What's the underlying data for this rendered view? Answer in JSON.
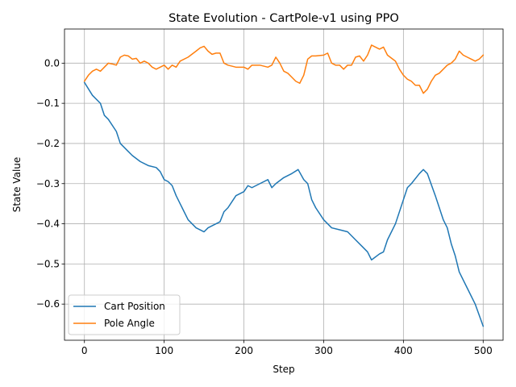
{
  "chart_data": {
    "type": "line",
    "title": "State Evolution - CartPole-v1 using PPO",
    "xlabel": "Step",
    "ylabel": "State Value",
    "xlim": [
      -25,
      525
    ],
    "ylim": [
      -0.69,
      0.085
    ],
    "xticks": [
      0,
      100,
      200,
      300,
      400,
      500
    ],
    "yticks": [
      -0.6,
      -0.5,
      -0.4,
      -0.3,
      -0.2,
      -0.1,
      0.0
    ],
    "xtick_labels": [
      "0",
      "100",
      "200",
      "300",
      "400",
      "500"
    ],
    "ytick_labels": [
      "−0.6",
      "−0.5",
      "−0.4",
      "−0.3",
      "−0.2",
      "−0.1",
      "0.0"
    ],
    "grid": true,
    "legend_position": "lower-left",
    "series": [
      {
        "name": "Cart Position",
        "color": "#1f77b4",
        "x": [
          0,
          10,
          20,
          25,
          30,
          40,
          45,
          50,
          55,
          60,
          70,
          80,
          90,
          95,
          100,
          105,
          110,
          115,
          120,
          125,
          130,
          140,
          150,
          155,
          160,
          170,
          175,
          180,
          190,
          200,
          205,
          210,
          220,
          230,
          235,
          240,
          250,
          255,
          260,
          268,
          275,
          280,
          285,
          290,
          300,
          310,
          320,
          330,
          340,
          350,
          355,
          360,
          370,
          375,
          380,
          390,
          400,
          405,
          410,
          420,
          425,
          430,
          440,
          450,
          455,
          460,
          465,
          470,
          480,
          490,
          500
        ],
        "y": [
          -0.048,
          -0.08,
          -0.1,
          -0.13,
          -0.14,
          -0.17,
          -0.2,
          -0.21,
          -0.22,
          -0.23,
          -0.245,
          -0.255,
          -0.26,
          -0.27,
          -0.29,
          -0.295,
          -0.305,
          -0.33,
          -0.35,
          -0.37,
          -0.39,
          -0.41,
          -0.42,
          -0.41,
          -0.405,
          -0.395,
          -0.37,
          -0.36,
          -0.33,
          -0.32,
          -0.305,
          -0.31,
          -0.3,
          -0.29,
          -0.31,
          -0.3,
          -0.285,
          -0.28,
          -0.275,
          -0.265,
          -0.29,
          -0.3,
          -0.34,
          -0.36,
          -0.39,
          -0.41,
          -0.415,
          -0.42,
          -0.44,
          -0.46,
          -0.47,
          -0.49,
          -0.475,
          -0.47,
          -0.44,
          -0.4,
          -0.34,
          -0.31,
          -0.3,
          -0.275,
          -0.265,
          -0.275,
          -0.33,
          -0.39,
          -0.41,
          -0.45,
          -0.48,
          -0.52,
          -0.56,
          -0.6,
          -0.655
        ]
      },
      {
        "name": "Pole Angle",
        "color": "#ff7f0e",
        "x": [
          0,
          5,
          10,
          15,
          20,
          25,
          30,
          35,
          40,
          45,
          50,
          55,
          60,
          65,
          70,
          75,
          80,
          85,
          90,
          95,
          100,
          105,
          110,
          115,
          120,
          130,
          140,
          145,
          150,
          155,
          160,
          165,
          170,
          175,
          180,
          190,
          200,
          205,
          210,
          220,
          230,
          235,
          240,
          245,
          250,
          255,
          260,
          265,
          270,
          275,
          280,
          285,
          290,
          300,
          305,
          310,
          315,
          320,
          325,
          330,
          335,
          340,
          345,
          350,
          355,
          360,
          365,
          370,
          375,
          380,
          390,
          395,
          400,
          405,
          410,
          415,
          420,
          425,
          430,
          435,
          440,
          445,
          450,
          455,
          460,
          465,
          470,
          475,
          480,
          485,
          490,
          495,
          500
        ],
        "y": [
          -0.045,
          -0.03,
          -0.02,
          -0.015,
          -0.02,
          -0.01,
          0.0,
          -0.002,
          -0.005,
          0.015,
          0.02,
          0.018,
          0.01,
          0.012,
          0.0,
          0.005,
          0.0,
          -0.01,
          -0.015,
          -0.01,
          -0.005,
          -0.015,
          -0.005,
          -0.01,
          0.005,
          0.015,
          0.03,
          0.038,
          0.042,
          0.03,
          0.022,
          0.025,
          0.025,
          0.0,
          -0.005,
          -0.01,
          -0.01,
          -0.015,
          -0.005,
          -0.005,
          -0.01,
          -0.005,
          0.015,
          0.0,
          -0.02,
          -0.025,
          -0.035,
          -0.045,
          -0.05,
          -0.03,
          0.01,
          0.018,
          0.018,
          0.02,
          0.025,
          0.0,
          -0.005,
          -0.005,
          -0.015,
          -0.005,
          -0.005,
          0.015,
          0.018,
          0.005,
          0.02,
          0.045,
          0.04,
          0.035,
          0.04,
          0.02,
          0.005,
          -0.015,
          -0.03,
          -0.04,
          -0.045,
          -0.055,
          -0.055,
          -0.075,
          -0.065,
          -0.045,
          -0.03,
          -0.025,
          -0.015,
          -0.005,
          0.0,
          0.01,
          0.03,
          0.02,
          0.015,
          0.01,
          0.005,
          0.01,
          0.02
        ]
      }
    ]
  }
}
